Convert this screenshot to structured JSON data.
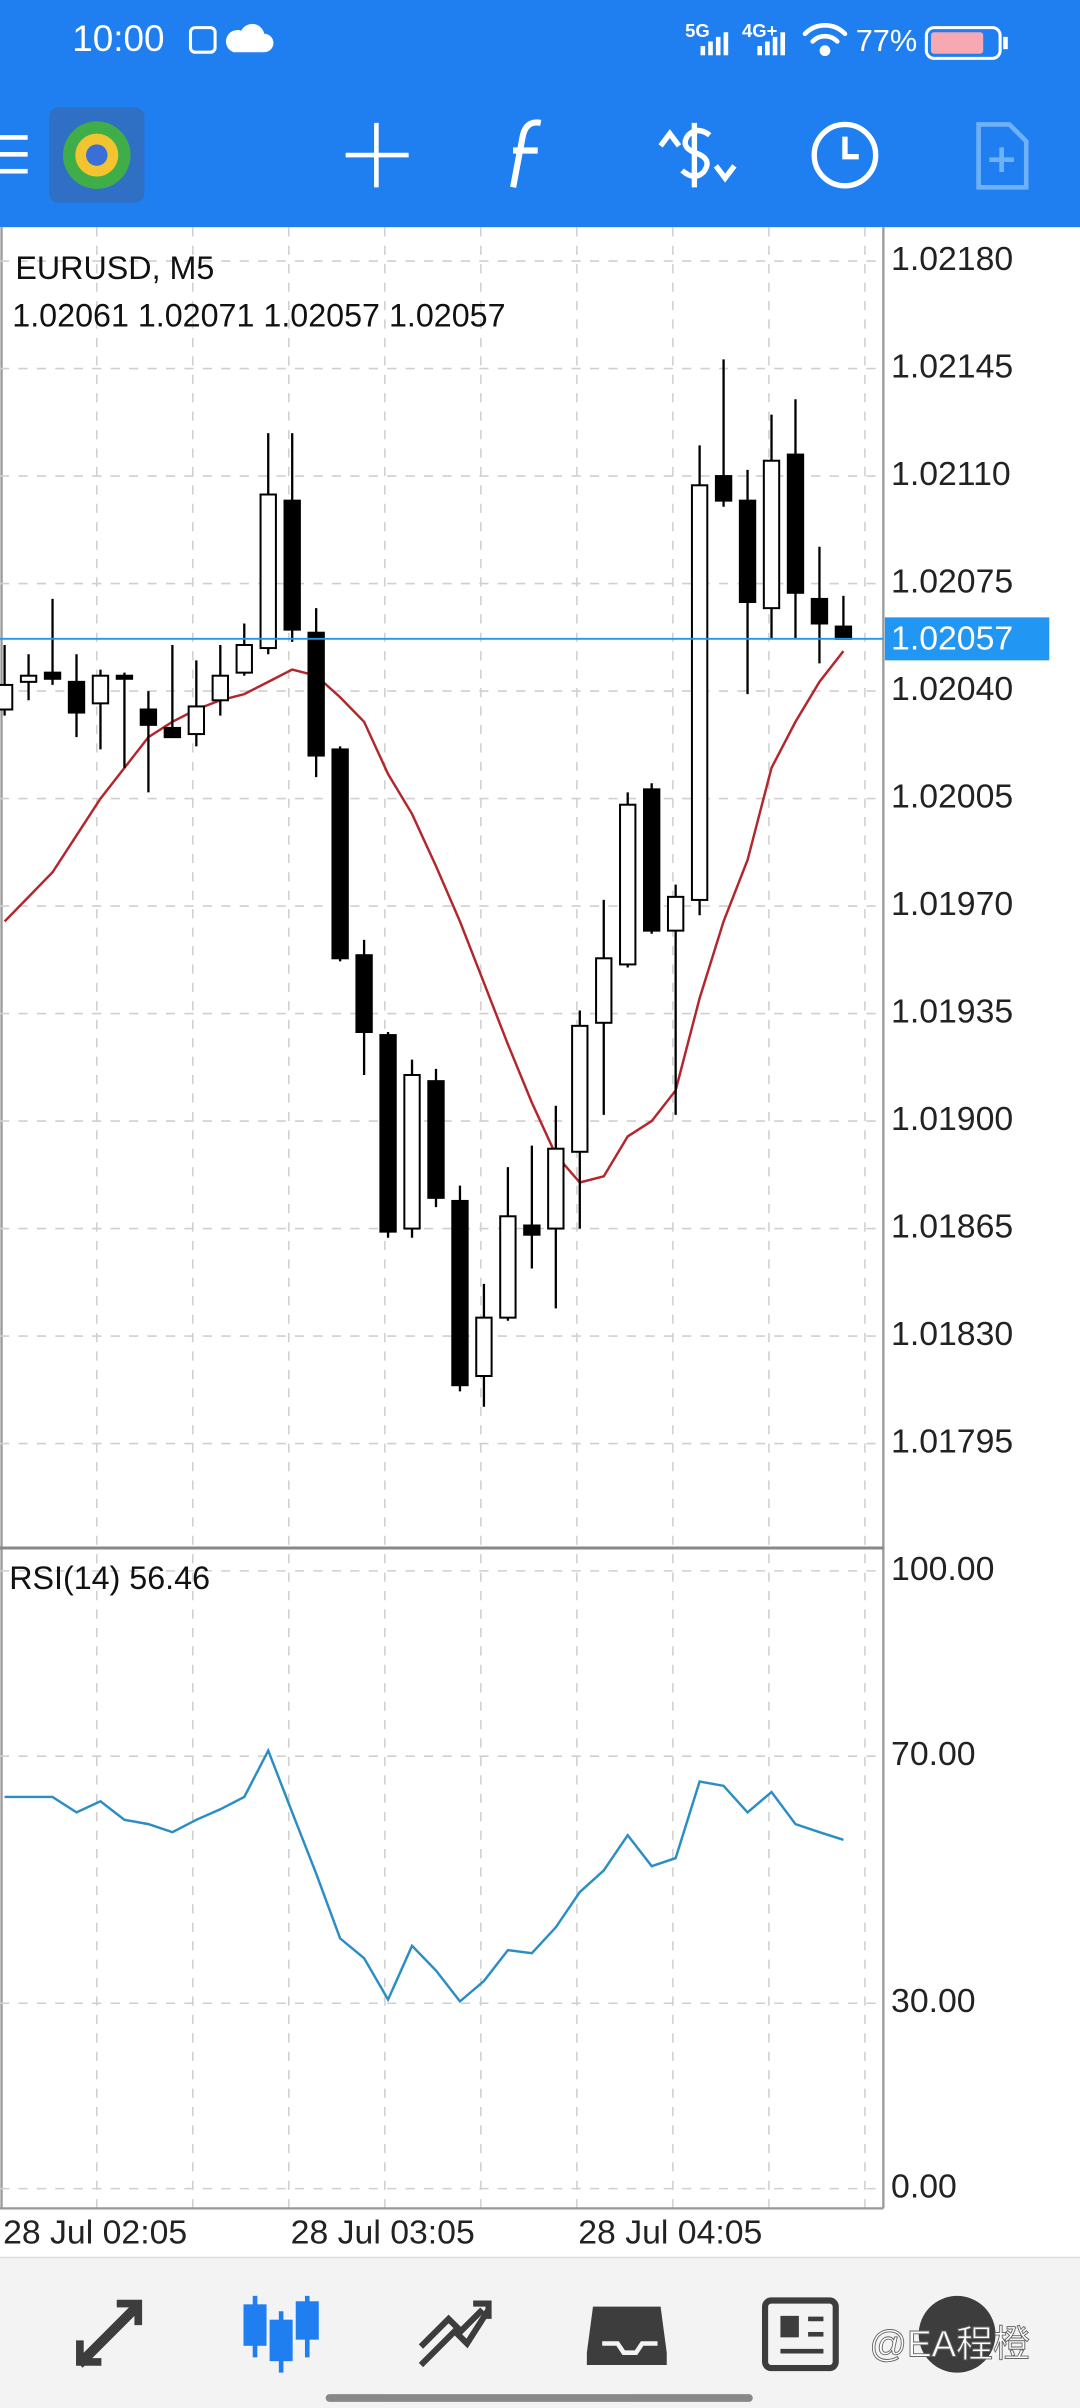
{
  "status_bar": {
    "time": "10:00",
    "network1": "5G",
    "network2": "4G+",
    "battery": "77%"
  },
  "watermark": "@EA程橙",
  "chart_data": [
    {
      "type": "candlestick",
      "title": "EURUSD, M5",
      "subtitle": "1.02061 1.02071 1.02057 1.02057",
      "categories": [
        "28 Jul 02:05",
        null,
        null,
        null,
        null,
        null,
        null,
        null,
        null,
        null,
        null,
        null,
        "28 Jul 03:05",
        null,
        null,
        null,
        null,
        null,
        null,
        null,
        null,
        null,
        null,
        null,
        "28 Jul 04:05",
        null,
        null,
        null,
        null,
        null,
        null,
        null,
        null,
        null,
        null,
        null
      ],
      "open": [
        1.02034,
        1.02043,
        1.02046,
        1.02043,
        1.02036,
        1.02045,
        1.02034,
        1.02028,
        1.02026,
        1.02037,
        1.02046,
        1.02054,
        1.02102,
        1.02059,
        1.02021,
        1.01954,
        1.01928,
        1.01865,
        1.01913,
        1.01874,
        1.01817,
        1.01836,
        1.01866,
        1.01865,
        1.0189,
        1.01932,
        1.01951,
        1.02008,
        1.01962,
        1.01972,
        1.0211,
        1.02102,
        1.02067,
        1.02117,
        1.0207,
        1.02061
      ],
      "high": [
        1.02055,
        1.02052,
        1.0207,
        1.02052,
        1.02047,
        1.02046,
        1.0204,
        1.02055,
        1.0205,
        1.02055,
        1.02062,
        1.02124,
        1.02124,
        1.02067,
        1.02022,
        1.01959,
        1.01929,
        1.0192,
        1.01917,
        1.01879,
        1.01847,
        1.01885,
        1.01892,
        1.01905,
        1.01936,
        1.01972,
        1.02007,
        1.0201,
        1.01977,
        1.0212,
        1.02148,
        1.02112,
        1.0213,
        1.02135,
        1.02087,
        1.02071
      ],
      "low": [
        1.02032,
        1.02037,
        1.02042,
        1.02025,
        1.02021,
        1.02015,
        1.02007,
        1.02025,
        1.02022,
        1.02032,
        1.02045,
        1.02052,
        1.02056,
        1.02012,
        1.01952,
        1.01915,
        1.01862,
        1.01862,
        1.01872,
        1.01812,
        1.01807,
        1.01835,
        1.01852,
        1.01839,
        1.01865,
        1.01902,
        1.0195,
        1.01961,
        1.01902,
        1.01967,
        1.021,
        1.02039,
        1.02057,
        1.02057,
        1.02049,
        1.02057
      ],
      "close": [
        1.02042,
        1.02045,
        1.02044,
        1.02033,
        1.02045,
        1.02044,
        1.02029,
        1.02025,
        1.02035,
        1.02045,
        1.02055,
        1.02104,
        1.0206,
        1.02019,
        1.01953,
        1.01929,
        1.01864,
        1.01915,
        1.01875,
        1.01814,
        1.01836,
        1.01869,
        1.01863,
        1.01891,
        1.01931,
        1.01953,
        1.02003,
        1.01962,
        1.01973,
        1.02107,
        1.02102,
        1.02069,
        1.02115,
        1.02072,
        1.02062,
        1.02057
      ],
      "up_color": "#ffffff",
      "down_color": "#000000",
      "ma": {
        "color": "#b3262b",
        "values": [
          1.01965,
          1.01973,
          1.01981,
          1.01993,
          1.02005,
          1.02015,
          1.02025,
          1.0203,
          1.02034,
          1.02037,
          1.02039,
          1.02043,
          1.02047,
          1.02045,
          1.02038,
          1.0203,
          1.02013,
          1.02,
          1.01983,
          1.01965,
          1.01945,
          1.01925,
          1.01906,
          1.01889,
          1.0188,
          1.01882,
          1.01895,
          1.019,
          1.0191,
          1.0194,
          1.01965,
          1.01985,
          1.02015,
          1.0203,
          1.02043,
          1.02053
        ]
      },
      "current_price": 1.02057,
      "current_color": "#2196f3",
      "ylim": [
        1.01761,
        1.02191
      ],
      "yticks": [
        {
          "value": 1.0218,
          "label": "1.02180"
        },
        1.02145,
        {
          "value": 1.0211,
          "label": "1.02110"
        },
        1.02075,
        {
          "value": 1.0204,
          "label": "1.02040"
        },
        1.02005,
        {
          "value": 1.0197,
          "label": "1.01970"
        },
        1.01935,
        {
          "value": 1.019,
          "label": "1.01900"
        },
        1.01865,
        {
          "value": 1.0183,
          "label": "1.01830"
        },
        1.01795
      ],
      "grid": true
    },
    {
      "type": "line",
      "title": "RSI(14) 56.46",
      "color": "#2a8ec4",
      "values": [
        63.4,
        63.4,
        63.4,
        60.9,
        62.7,
        59.7,
        59.0,
        57.7,
        59.7,
        61.4,
        63.4,
        70.9,
        60.9,
        51.0,
        40.5,
        37.3,
        30.6,
        39.3,
        35.3,
        30.3,
        33.6,
        38.6,
        38.1,
        42.3,
        48.0,
        51.5,
        57.2,
        52.2,
        53.5,
        65.9,
        65.2,
        60.9,
        64.2,
        59.0,
        57.7,
        56.46
      ],
      "ylim": [
        -3.2,
        103.7
      ],
      "yticks": [
        {
          "value": 100,
          "label": "100.00"
        },
        {
          "value": 70,
          "label": "70.00"
        },
        {
          "value": 30,
          "label": "30.00"
        },
        {
          "value": 0,
          "label": "0.00"
        }
      ],
      "grid": true
    }
  ]
}
